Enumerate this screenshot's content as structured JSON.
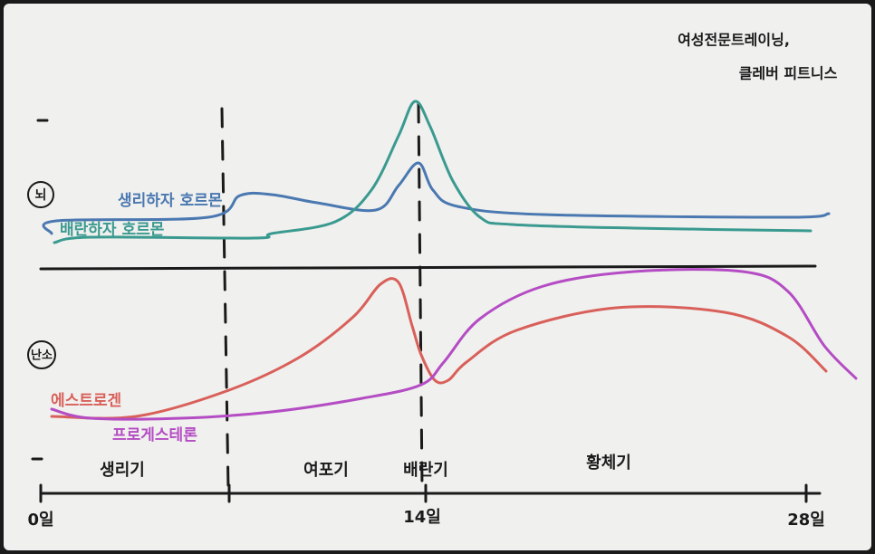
{
  "header": {
    "brand": [
      "여성전문트레이닝,",
      "클레버 피트니스"
    ]
  },
  "sections": {
    "brain": "뇌",
    "ovary": "난소"
  },
  "curves": {
    "brain": [
      "생리하자 호르몬",
      "배란하자 호르몬"
    ],
    "ovary": [
      "에스트로겐",
      "프로게스테론"
    ]
  },
  "phases": [
    "생리기",
    "여포기",
    "배란기",
    "황체기"
  ],
  "axis": {
    "labels": [
      "0일",
      "14일",
      "28일"
    ]
  }
}
